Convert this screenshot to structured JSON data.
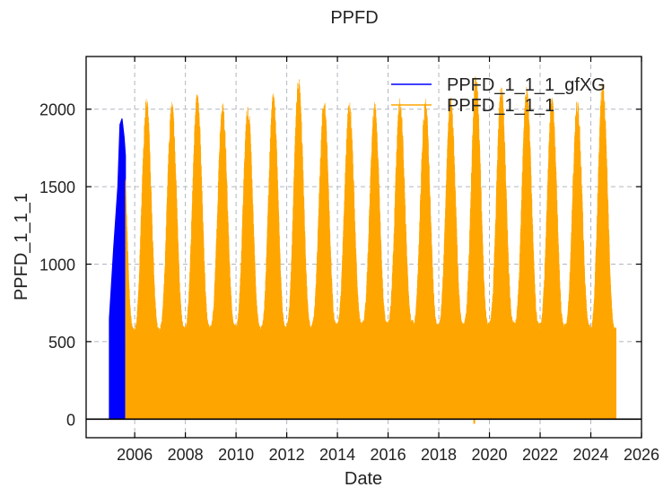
{
  "chart_data": {
    "type": "area",
    "title": "PPFD",
    "xlabel": "Date",
    "ylabel": "PPFD_1_1_1",
    "xlim": [
      "2004-02-01",
      "2026-01-01"
    ],
    "ylim": [
      -120,
      2340
    ],
    "x_ticks": [
      "2006",
      "2008",
      "2010",
      "2012",
      "2014",
      "2016",
      "2018",
      "2020",
      "2022",
      "2024",
      "2026"
    ],
    "y_ticks": [
      "0",
      "500",
      "1000",
      "1500",
      "2000"
    ],
    "grid": true,
    "legend_position": "top-right",
    "series": [
      {
        "name": "PPFD_1_1_1_gfXG",
        "color": "#0000ff",
        "x": [
          "2005-01-01",
          "2005-03-01",
          "2005-05-01",
          "2005-06-01",
          "2005-07-01",
          "2005-08-01",
          "2005-08-20"
        ],
        "values": [
          650,
          1100,
          1500,
          1900,
          1940,
          1820,
          1700
        ]
      },
      {
        "name": "PPFD_1_1_1",
        "color": "#ffa500",
        "annual_peaks": {
          "years": [
            2006,
            2007,
            2008,
            2009,
            2010,
            2011,
            2012,
            2013,
            2014,
            2015,
            2016,
            2017,
            2018,
            2019,
            2020,
            2021,
            2022,
            2023,
            2024
          ],
          "values": [
            2075,
            2055,
            2120,
            2050,
            2040,
            2105,
            2210,
            2075,
            2060,
            2045,
            2080,
            2080,
            2090,
            2230,
            2160,
            2150,
            2080,
            2075,
            2200
          ]
        },
        "annual_minima": [
          590,
          600,
          605,
          610,
          600,
          600,
          610,
          620,
          625,
          630,
          640,
          615,
          620,
          625,
          630,
          620,
          615,
          610,
          590
        ],
        "min_value": -30,
        "range": [
          "2005-08-20",
          "2024-12-31"
        ]
      }
    ]
  }
}
